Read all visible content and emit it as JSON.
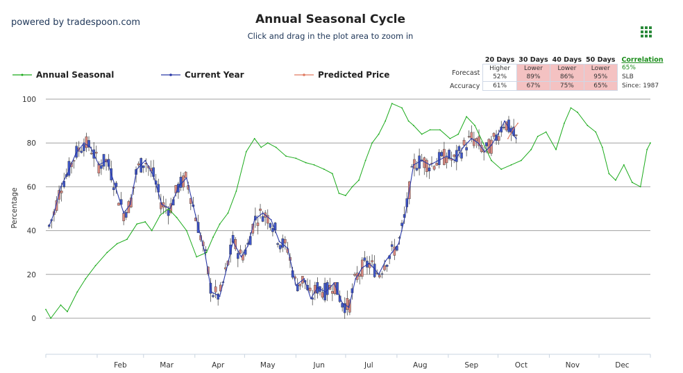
{
  "header": {
    "powered_by": "powered by tradespoon.com",
    "title": "Annual Seasonal Cycle",
    "subtitle": "Click and drag in the plot area to zoom in",
    "menu_icon": "grid-menu-icon"
  },
  "legend": {
    "annual_seasonal": "Annual Seasonal",
    "current_year": "Current Year",
    "predicted_price": "Predicted Price"
  },
  "colors": {
    "seasonal": "#1aaa1a",
    "current": "#2b3aa8",
    "predicted": "#e07a60",
    "candle_up": "#3f57c9",
    "candle_down": "#d98880",
    "grid": "#a0a0a0"
  },
  "stats": {
    "headers": [
      "20 Days",
      "30 Days",
      "40 Days",
      "50 Days"
    ],
    "forecast_label": "Forecast",
    "accuracy_label": "Accuracy",
    "forecast": [
      {
        "dir": "Higher",
        "pct": "52%"
      },
      {
        "dir": "Lower",
        "pct": "89%"
      },
      {
        "dir": "Lower",
        "pct": "86%"
      },
      {
        "dir": "Lower",
        "pct": "95%"
      }
    ],
    "accuracy": [
      "61%",
      "67%",
      "75%",
      "65%"
    ],
    "correlation_label": "Correlation",
    "correlation_value": "65%",
    "symbol": "SLB",
    "since": "Since: 1987"
  },
  "chart_data": {
    "type": "line",
    "title": "Annual Seasonal Cycle",
    "ylabel": "Percentage",
    "ylim": [
      -18,
      104
    ],
    "yticks": [
      0,
      20,
      40,
      60,
      80,
      100
    ],
    "xticks": [
      "Feb",
      "Mar",
      "Apr",
      "May",
      "Jun",
      "Jul",
      "Aug",
      "Sep",
      "Oct",
      "Nov",
      "Dec"
    ],
    "xlim_days": [
      1,
      366
    ],
    "grid": true,
    "series": [
      {
        "name": "Annual Seasonal",
        "x_day": [
          1,
          4,
          10,
          14,
          20,
          25,
          31,
          38,
          44,
          50,
          56,
          61,
          65,
          70,
          75,
          80,
          86,
          92,
          98,
          102,
          106,
          111,
          116,
          122,
          127,
          131,
          135,
          140,
          146,
          152,
          158,
          163,
          169,
          174,
          178,
          182,
          186,
          190,
          194,
          198,
          202,
          206,
          210,
          216,
          220,
          223,
          228,
          233,
          239,
          245,
          250,
          255,
          260,
          265,
          270,
          276,
          282,
          288,
          294,
          298,
          303,
          309,
          314,
          318,
          322,
          328,
          333,
          337,
          341,
          345,
          350,
          355,
          360,
          364,
          366
        ],
        "y": [
          4,
          0,
          6,
          3,
          12,
          18,
          24,
          30,
          34,
          36,
          43,
          44,
          40,
          47,
          50,
          46,
          40,
          28,
          30,
          37,
          43,
          48,
          58,
          76,
          82,
          78,
          80,
          78,
          74,
          73,
          71,
          70,
          68,
          66,
          57,
          56,
          60,
          63,
          72,
          80,
          84,
          90,
          98,
          96,
          90,
          88,
          84,
          86,
          86,
          82,
          84,
          92,
          88,
          80,
          72,
          68,
          70,
          72,
          77,
          83,
          85,
          77,
          89,
          96,
          94,
          88,
          85,
          78,
          66,
          63,
          70,
          62,
          60,
          77,
          80
        ]
      },
      {
        "name": "Current Year",
        "x_day": [
          3,
          6,
          10,
          14,
          19,
          24,
          28,
          33,
          38,
          43,
          48,
          52,
          56,
          61,
          66,
          71,
          76,
          81,
          86,
          92,
          97,
          101,
          106,
          110,
          114,
          119,
          123,
          127,
          132,
          137,
          142,
          147,
          152,
          157,
          161,
          165,
          170,
          175,
          180,
          184,
          188,
          192,
          196,
          199,
          202,
          206,
          210,
          214,
          218,
          223,
          228,
          233,
          238,
          243,
          248,
          253,
          258,
          262,
          266,
          270,
          274,
          278,
          282,
          285
        ],
        "y": [
          42,
          48,
          60,
          66,
          75,
          80,
          78,
          70,
          72,
          60,
          48,
          52,
          68,
          72,
          65,
          52,
          50,
          60,
          64,
          45,
          30,
          12,
          10,
          22,
          35,
          28,
          33,
          45,
          48,
          45,
          35,
          32,
          15,
          18,
          9,
          14,
          12,
          16,
          7,
          5,
          18,
          23,
          25,
          23,
          20,
          26,
          30,
          34,
          47,
          70,
          72,
          70,
          72,
          74,
          72,
          78,
          82,
          80,
          76,
          79,
          84,
          90,
          85,
          82
        ]
      },
      {
        "name": "Predicted Price",
        "x_day": [
          280,
          283,
          286
        ],
        "y": [
          82,
          86,
          89
        ]
      }
    ]
  }
}
